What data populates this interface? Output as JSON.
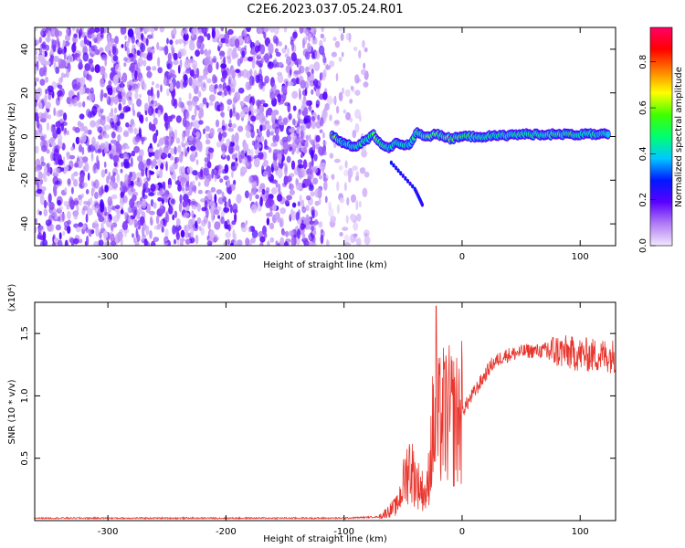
{
  "figure": {
    "title": "C2E6.2023.037.05.24.R01"
  },
  "chart_data": [
    {
      "type": "heatmap",
      "xlabel": "Height of straight line (km)",
      "ylabel": "Frequency (Hz)",
      "xlim": [
        -362,
        130
      ],
      "ylim": [
        -50,
        50
      ],
      "xticks": [
        -300,
        -200,
        -100,
        0,
        100
      ],
      "yticks": [
        -40,
        -20,
        0,
        20,
        40
      ],
      "colorbar": {
        "label": "Normalized spectral amplitude",
        "range": [
          0.0,
          0.95
        ],
        "ticks": [
          "0.0",
          "0.2",
          "0.4",
          "0.6",
          "0.8"
        ],
        "tick_values": [
          0.0,
          0.2,
          0.4,
          0.6,
          0.8
        ],
        "colormap": "rainbow (purple-blue-cyan-green-yellow-red-magenta)"
      },
      "noise_region": {
        "x": [
          -362,
          -80
        ],
        "y": [
          -50,
          50
        ],
        "amplitude": [
          0.05,
          0.2
        ]
      },
      "signal_track": [
        {
          "x": -110,
          "y": 0,
          "a": 0.75
        },
        {
          "x": -100,
          "y": -3,
          "a": 0.4
        },
        {
          "x": -90,
          "y": -5,
          "a": 0.5
        },
        {
          "x": -75,
          "y": 1,
          "a": 0.55
        },
        {
          "x": -70,
          "y": -3,
          "a": 0.6
        },
        {
          "x": -62,
          "y": -5,
          "a": 0.45
        },
        {
          "x": -55,
          "y": -3,
          "a": 0.5
        },
        {
          "x": -45,
          "y": -4,
          "a": 0.45
        },
        {
          "x": -38,
          "y": 2,
          "a": 0.55
        },
        {
          "x": -30,
          "y": 0,
          "a": 0.6
        },
        {
          "x": -22,
          "y": 1,
          "a": 0.65
        },
        {
          "x": -10,
          "y": -1,
          "a": 0.6
        },
        {
          "x": 0,
          "y": 0,
          "a": 0.55
        },
        {
          "x": 20,
          "y": 0,
          "a": 0.45
        },
        {
          "x": 50,
          "y": 1,
          "a": 0.5
        },
        {
          "x": 75,
          "y": 1,
          "a": 0.55
        },
        {
          "x": 100,
          "y": 1,
          "a": 0.5
        },
        {
          "x": 125,
          "y": 1,
          "a": 0.45
        }
      ],
      "tail": [
        {
          "x": -60,
          "y": -12
        },
        {
          "x": -40,
          "y": -24
        },
        {
          "x": -33,
          "y": -32
        }
      ]
    },
    {
      "type": "line",
      "xlabel": "Height of straight line (km)",
      "ylabel": "SNR (10 * v/v)",
      "y_multiplier": "(x10⁴)",
      "xlim": [
        -362,
        130
      ],
      "ylim": [
        0,
        1.75
      ],
      "xticks": [
        -300,
        -200,
        -100,
        0,
        100
      ],
      "yticks": [
        0.5,
        1.0,
        1.5
      ],
      "ytick_labels": [
        "0.5",
        "1.0",
        "1.5"
      ],
      "color": "#e8362e",
      "envelope": [
        {
          "x": -362,
          "y": 0.02
        },
        {
          "x": -100,
          "y": 0.02
        },
        {
          "x": -70,
          "y": 0.03
        },
        {
          "x": -55,
          "y": 0.12
        },
        {
          "x": -45,
          "y": 0.45
        },
        {
          "x": -38,
          "y": 0.3
        },
        {
          "x": -30,
          "y": 0.2
        },
        {
          "x": -25,
          "y": 0.7
        },
        {
          "x": -15,
          "y": 0.85
        },
        {
          "x": -5,
          "y": 0.8
        },
        {
          "x": 5,
          "y": 0.95
        },
        {
          "x": 15,
          "y": 1.1
        },
        {
          "x": 25,
          "y": 1.25
        },
        {
          "x": 35,
          "y": 1.32
        },
        {
          "x": 55,
          "y": 1.36
        },
        {
          "x": 80,
          "y": 1.36
        },
        {
          "x": 100,
          "y": 1.33
        },
        {
          "x": 130,
          "y": 1.32
        }
      ],
      "peak": {
        "x": -22,
        "y": 1.72
      }
    }
  ]
}
